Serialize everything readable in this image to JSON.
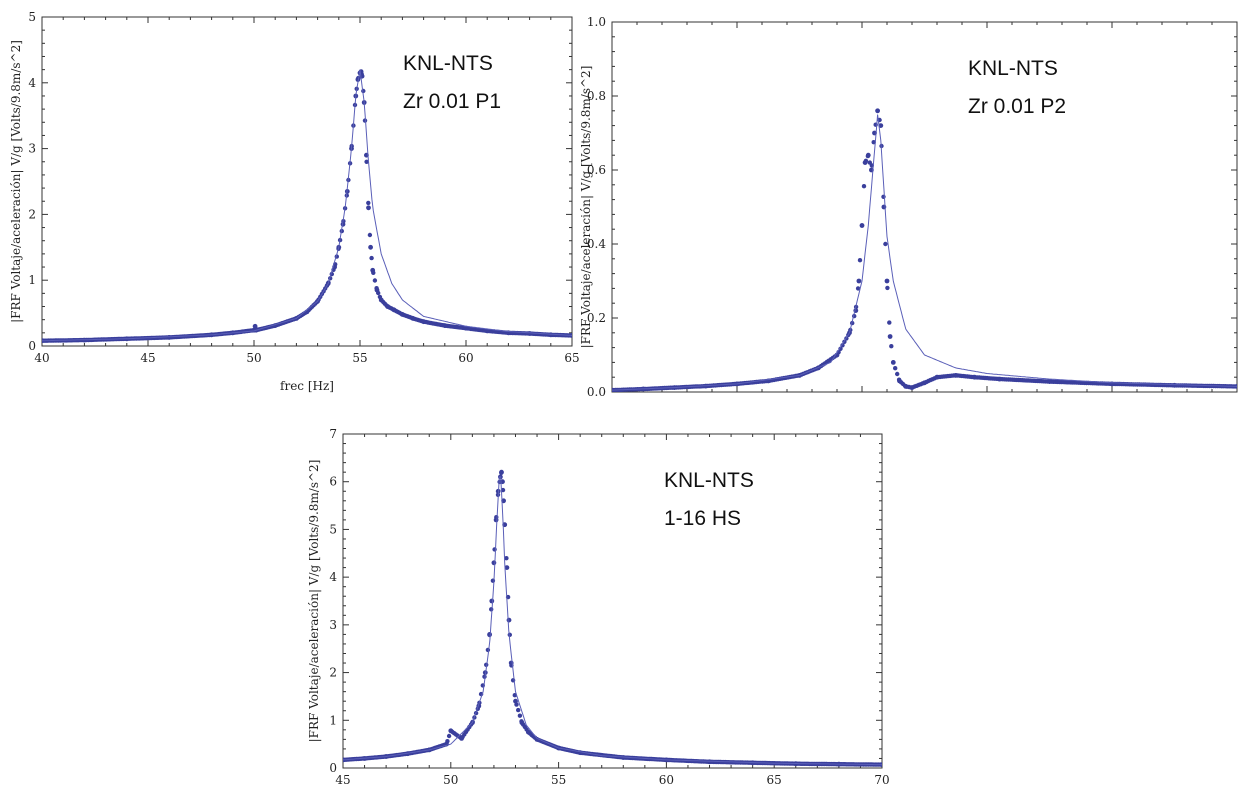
{
  "chart_data": [
    {
      "type": "scatter",
      "xlabel": "frec [Hz]",
      "ylabel": "|FRF Voltaje/aceleración| V/g [Volts/9.8m/s^2]",
      "xlim": [
        40,
        65
      ],
      "ylim": [
        0,
        5
      ],
      "xticks": [
        "40",
        "45",
        "50",
        "55",
        "60",
        "65"
      ],
      "yticks": [
        "0",
        "1",
        "2",
        "3",
        "4",
        "5"
      ],
      "annotation": [
        "KNL-NTS",
        "Zr 0.01 P1"
      ],
      "series": [
        {
          "kind": "points",
          "x": [
            40,
            42,
            44,
            46,
            48,
            49,
            50,
            50.05,
            50.1,
            51,
            52,
            52.5,
            53,
            53.5,
            53.8,
            54,
            54.2,
            54.4,
            54.6,
            54.8,
            54.9,
            55,
            55.05,
            55.1,
            55.2,
            55.3,
            55.4,
            55.5,
            55.6,
            55.8,
            56,
            56.3,
            56.6,
            57,
            57.5,
            58,
            59,
            60,
            61,
            62,
            63,
            64,
            65
          ],
          "y": [
            0.08,
            0.09,
            0.11,
            0.13,
            0.17,
            0.2,
            0.24,
            0.3,
            0.24,
            0.31,
            0.42,
            0.52,
            0.68,
            0.95,
            1.2,
            1.5,
            1.85,
            2.35,
            3.0,
            3.8,
            4.05,
            4.15,
            4.17,
            4.1,
            3.7,
            2.9,
            2.1,
            1.5,
            1.15,
            0.85,
            0.7,
            0.6,
            0.55,
            0.48,
            0.42,
            0.37,
            0.31,
            0.27,
            0.23,
            0.2,
            0.19,
            0.17,
            0.16
          ]
        },
        {
          "kind": "fit",
          "x": [
            40,
            44,
            48,
            50,
            52,
            53,
            53.5,
            54,
            54.3,
            54.6,
            54.8,
            55,
            55.2,
            55.4,
            55.6,
            56,
            56.5,
            57,
            58,
            60,
            62,
            65
          ],
          "y": [
            0.08,
            0.11,
            0.17,
            0.23,
            0.42,
            0.68,
            0.95,
            1.5,
            2.1,
            3.0,
            3.8,
            4.2,
            3.7,
            2.8,
            2.1,
            1.4,
            0.95,
            0.7,
            0.45,
            0.3,
            0.22,
            0.16
          ]
        }
      ]
    },
    {
      "type": "scatter",
      "xlabel": "",
      "ylabel": "|FRF Voltaje/aceleración| V/g [Volts/9.8m/s^2]",
      "xlim": [
        0,
        1
      ],
      "ylim": [
        0,
        1
      ],
      "xticks": [],
      "yticks": [
        "0.0",
        "0.2",
        "0.4",
        "0.6",
        "0.8",
        "1.0"
      ],
      "annotation": [
        "KNL-NTS",
        "Zr 0.01 P2"
      ],
      "series": [
        {
          "kind": "points",
          "x": [
            0.0,
            0.05,
            0.1,
            0.15,
            0.2,
            0.25,
            0.3,
            0.33,
            0.36,
            0.38,
            0.39,
            0.395,
            0.4,
            0.405,
            0.41,
            0.415,
            0.42,
            0.425,
            0.43,
            0.435,
            0.44,
            0.445,
            0.45,
            0.46,
            0.47,
            0.48,
            0.5,
            0.52,
            0.55,
            0.58,
            0.62,
            0.7,
            0.8,
            0.9,
            1.0
          ],
          "y": [
            0.005,
            0.008,
            0.012,
            0.016,
            0.022,
            0.03,
            0.045,
            0.065,
            0.1,
            0.16,
            0.22,
            0.3,
            0.45,
            0.62,
            0.64,
            0.6,
            0.7,
            0.76,
            0.72,
            0.5,
            0.3,
            0.15,
            0.08,
            0.03,
            0.015,
            0.012,
            0.025,
            0.04,
            0.045,
            0.04,
            0.035,
            0.028,
            0.022,
            0.018,
            0.015
          ]
        },
        {
          "kind": "fit",
          "x": [
            0.0,
            0.1,
            0.2,
            0.3,
            0.35,
            0.38,
            0.4,
            0.41,
            0.42,
            0.425,
            0.43,
            0.44,
            0.45,
            0.47,
            0.5,
            0.55,
            0.6,
            0.7,
            0.8,
            0.9,
            1.0
          ],
          "y": [
            0.005,
            0.012,
            0.022,
            0.045,
            0.08,
            0.16,
            0.3,
            0.45,
            0.65,
            0.75,
            0.68,
            0.42,
            0.3,
            0.17,
            0.1,
            0.065,
            0.05,
            0.035,
            0.025,
            0.02,
            0.015
          ]
        }
      ]
    },
    {
      "type": "scatter",
      "xlabel": "",
      "ylabel": "|FRF Voltaje/aceleración| V/g [Volts/9.8m/s^2]",
      "xlim": [
        45,
        70
      ],
      "ylim": [
        0,
        7
      ],
      "xticks": [
        "45",
        "50",
        "55",
        "60",
        "65",
        "70"
      ],
      "yticks": [
        "0",
        "1",
        "2",
        "3",
        "4",
        "5",
        "6",
        "7"
      ],
      "annotation": [
        "KNL-NTS",
        "1-16 HS"
      ],
      "series": [
        {
          "kind": "points",
          "x": [
            45,
            46,
            47,
            48,
            49,
            49.8,
            50,
            50.5,
            51,
            51.3,
            51.6,
            51.8,
            51.9,
            52,
            52.1,
            52.2,
            52.3,
            52.35,
            52.4,
            52.45,
            52.5,
            52.6,
            52.7,
            52.8,
            53,
            53.3,
            53.6,
            54,
            55,
            56,
            58,
            60,
            62,
            64,
            66,
            68,
            70
          ],
          "y": [
            0.17,
            0.2,
            0.24,
            0.3,
            0.38,
            0.5,
            0.78,
            0.62,
            0.95,
            1.3,
            2.0,
            2.8,
            3.5,
            4.3,
            5.2,
            5.8,
            6.1,
            6.2,
            6.0,
            5.6,
            5.1,
            4.2,
            3.1,
            2.2,
            1.4,
            0.95,
            0.75,
            0.6,
            0.42,
            0.32,
            0.22,
            0.17,
            0.13,
            0.11,
            0.09,
            0.08,
            0.07
          ]
        },
        {
          "kind": "fit",
          "x": [
            45,
            47,
            49,
            50,
            51,
            51.5,
            51.8,
            52,
            52.15,
            52.25,
            52.3,
            52.4,
            52.5,
            52.7,
            53,
            53.5,
            54,
            55,
            57,
            60,
            65,
            70
          ],
          "y": [
            0.17,
            0.24,
            0.38,
            0.5,
            0.95,
            1.6,
            2.6,
            3.9,
            5.3,
            6.1,
            6.2,
            5.4,
            4.3,
            2.8,
            1.6,
            0.9,
            0.62,
            0.42,
            0.26,
            0.17,
            0.1,
            0.07
          ]
        }
      ]
    }
  ]
}
